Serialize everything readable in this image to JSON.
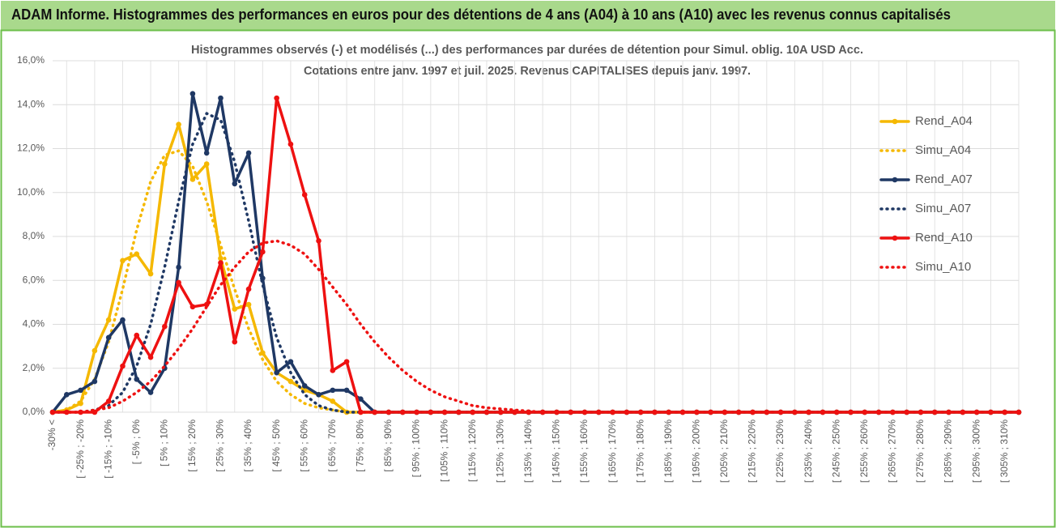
{
  "header": {
    "title": "ADAM Informe. Histogrammes des performances en euros pour des détentions de 4 ans (A04) à 10 ans (A10) avec les revenus connus capitalisés"
  },
  "chart_data": {
    "type": "line",
    "title": "Histogrammes observés (-) et modélisés (...) des performances par durées de détention pour Simul. oblig. 10A USD Acc.",
    "subtitle": "Cotations entre janv. 1997 et juil. 2025. Revenus CAPITALISES depuis janv. 1997.",
    "categories": [
      "-30% <",
      null,
      "[ -25% ; -20%",
      null,
      "[ -15% ; -10%",
      null,
      "[ -5% ; 0%",
      null,
      "[ 5% ; 10%",
      null,
      "[ 15% ; 20%",
      null,
      "[ 25% ; 30%",
      null,
      "[ 35% ; 40%",
      null,
      "[ 45% ; 50%",
      null,
      "[ 55% ; 60%",
      null,
      "[ 65% ; 70%",
      null,
      "[ 75% ; 80%",
      null,
      "[ 85% ; 90%",
      null,
      "[ 95% ; 100%",
      null,
      "[ 105% ; 110%",
      null,
      "[ 115% ; 120%",
      null,
      "[ 125% ; 130%",
      null,
      "[ 135% ; 140%",
      null,
      "[ 145% ; 150%",
      null,
      "[ 155% ; 160%",
      null,
      "[ 165% ; 170%",
      null,
      "[ 175% ; 180%",
      null,
      "[ 185% ; 190%",
      null,
      "[ 195% ; 200%",
      null,
      "[ 205% ; 210%",
      null,
      "[ 215% ; 220%",
      null,
      "[ 225% ; 230%",
      null,
      "[ 235% ; 240%",
      null,
      "[ 245% ; 250%",
      null,
      "[ 255% ; 260%",
      null,
      "[ 265% ; 270%",
      null,
      "[ 275% ; 280%",
      null,
      "[ 285% ; 290%",
      null,
      "[ 295% ; 300%",
      null,
      "[ 305% ; 310%",
      null
    ],
    "series": [
      {
        "name": "Rend_A04",
        "color": "#f5b800",
        "style": "solid",
        "markers": true,
        "values": [
          0,
          0.1,
          0.4,
          2.8,
          4.2,
          6.9,
          7.2,
          6.3,
          11.3,
          13.1,
          10.6,
          11.3,
          7.0,
          4.7,
          4.9,
          2.7,
          1.8,
          1.4,
          1.0,
          0.8,
          0.5,
          0,
          0,
          0,
          0,
          0,
          0,
          0,
          0,
          0,
          0,
          0,
          0,
          0,
          0,
          0,
          0,
          0,
          0,
          0,
          0,
          0,
          0,
          0,
          0,
          0,
          0,
          0,
          0,
          0,
          0,
          0,
          0,
          0,
          0,
          0,
          0,
          0,
          0,
          0,
          0,
          0,
          0,
          0,
          0,
          0,
          0,
          0,
          0,
          0
        ]
      },
      {
        "name": "Simu_A04",
        "color": "#f5b800",
        "style": "dotted",
        "markers": false,
        "values": [
          0,
          0.1,
          0.5,
          1.5,
          3.2,
          5.6,
          8.3,
          10.5,
          11.7,
          11.9,
          11.2,
          9.6,
          7.6,
          5.6,
          3.8,
          2.4,
          1.4,
          0.8,
          0.4,
          0.2,
          0.1,
          0,
          0,
          0,
          0,
          0,
          0,
          0,
          0,
          0,
          0,
          0,
          0,
          0,
          0,
          0,
          0,
          0,
          0,
          0,
          0,
          0,
          0,
          0,
          0,
          0,
          0,
          0,
          0,
          0,
          0,
          0,
          0,
          0,
          0,
          0,
          0,
          0,
          0,
          0,
          0,
          0,
          0,
          0,
          0,
          0,
          0,
          0,
          0,
          0
        ]
      },
      {
        "name": "Rend_A07",
        "color": "#1f3864",
        "style": "solid",
        "markers": true,
        "values": [
          0,
          0.8,
          1.0,
          1.4,
          3.4,
          4.2,
          1.5,
          0.9,
          2.0,
          6.6,
          14.5,
          11.8,
          14.3,
          10.4,
          11.8,
          6.1,
          1.8,
          2.3,
          1.2,
          0.8,
          1.0,
          1.0,
          0.6,
          0,
          0,
          0,
          0,
          0,
          0,
          0,
          0,
          0,
          0,
          0,
          0,
          0,
          0,
          0,
          0,
          0,
          0,
          0,
          0,
          0,
          0,
          0,
          0,
          0,
          0,
          0,
          0,
          0,
          0,
          0,
          0,
          0,
          0,
          0,
          0,
          0,
          0,
          0,
          0,
          0,
          0,
          0,
          0,
          0,
          0,
          0
        ]
      },
      {
        "name": "Simu_A07",
        "color": "#1f3864",
        "style": "dotted",
        "markers": false,
        "values": [
          0,
          0,
          0,
          0.1,
          0.3,
          0.9,
          2.1,
          4.0,
          6.6,
          9.6,
          12.2,
          13.6,
          13.3,
          11.4,
          8.7,
          5.8,
          3.4,
          1.8,
          0.8,
          0.3,
          0.1,
          0,
          0,
          0,
          0,
          0,
          0,
          0,
          0,
          0,
          0,
          0,
          0,
          0,
          0,
          0,
          0,
          0,
          0,
          0,
          0,
          0,
          0,
          0,
          0,
          0,
          0,
          0,
          0,
          0,
          0,
          0,
          0,
          0,
          0,
          0,
          0,
          0,
          0,
          0,
          0,
          0,
          0,
          0,
          0,
          0,
          0,
          0,
          0,
          0
        ]
      },
      {
        "name": "Rend_A10",
        "color": "#ee1111",
        "style": "solid",
        "markers": true,
        "values": [
          0,
          0,
          0,
          0,
          0.5,
          2.1,
          3.5,
          2.5,
          3.9,
          5.9,
          4.8,
          4.9,
          6.8,
          3.2,
          5.6,
          7.3,
          14.3,
          12.2,
          9.9,
          7.8,
          1.9,
          2.3,
          0,
          0,
          0,
          0,
          0,
          0,
          0,
          0,
          0,
          0,
          0,
          0,
          0,
          0,
          0,
          0,
          0,
          0,
          0,
          0,
          0,
          0,
          0,
          0,
          0,
          0,
          0,
          0,
          0,
          0,
          0,
          0,
          0,
          0,
          0,
          0,
          0,
          0,
          0,
          0,
          0,
          0,
          0,
          0,
          0,
          0,
          0,
          0
        ]
      },
      {
        "name": "Simu_A10",
        "color": "#ee1111",
        "style": "dotted",
        "markers": false,
        "values": [
          0,
          0,
          0,
          0.1,
          0.2,
          0.5,
          0.9,
          1.4,
          2.1,
          2.9,
          3.8,
          4.8,
          5.8,
          6.6,
          7.3,
          7.7,
          7.8,
          7.6,
          7.2,
          6.5,
          5.7,
          4.9,
          4.0,
          3.2,
          2.5,
          1.9,
          1.4,
          1.0,
          0.7,
          0.5,
          0.3,
          0.2,
          0.15,
          0.1,
          0.05,
          0,
          0,
          0,
          0,
          0,
          0,
          0,
          0,
          0,
          0,
          0,
          0,
          0,
          0,
          0,
          0,
          0,
          0,
          0,
          0,
          0,
          0,
          0,
          0,
          0,
          0,
          0,
          0,
          0,
          0,
          0,
          0,
          0,
          0,
          0
        ]
      }
    ],
    "ylim": [
      0,
      16
    ],
    "yticks": [
      {
        "value": 0,
        "label": "0,0%"
      },
      {
        "value": 2,
        "label": "2,0%"
      },
      {
        "value": 4,
        "label": "4,0%"
      },
      {
        "value": 6,
        "label": "6,0%"
      },
      {
        "value": 8,
        "label": "8,0%"
      },
      {
        "value": 10,
        "label": "10,0%"
      },
      {
        "value": 12,
        "label": "12,0%"
      },
      {
        "value": 14,
        "label": "14,0%"
      },
      {
        "value": 16,
        "label": "16,0%"
      }
    ],
    "grid": true,
    "legend": "right"
  }
}
